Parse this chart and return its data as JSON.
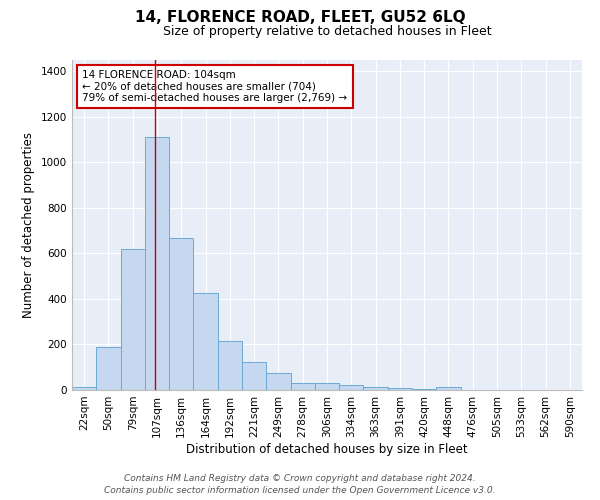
{
  "title": "14, FLORENCE ROAD, FLEET, GU52 6LQ",
  "subtitle": "Size of property relative to detached houses in Fleet",
  "xlabel": "Distribution of detached houses by size in Fleet",
  "ylabel": "Number of detached properties",
  "footer_line1": "Contains HM Land Registry data © Crown copyright and database right 2024.",
  "footer_line2": "Contains public sector information licensed under the Open Government Licence v3.0.",
  "categories": [
    "22sqm",
    "50sqm",
    "79sqm",
    "107sqm",
    "136sqm",
    "164sqm",
    "192sqm",
    "221sqm",
    "249sqm",
    "278sqm",
    "306sqm",
    "334sqm",
    "363sqm",
    "391sqm",
    "420sqm",
    "448sqm",
    "476sqm",
    "505sqm",
    "533sqm",
    "562sqm",
    "590sqm"
  ],
  "values": [
    15,
    190,
    620,
    1110,
    670,
    425,
    215,
    125,
    75,
    32,
    32,
    20,
    13,
    10,
    3,
    12,
    0,
    0,
    0,
    0,
    0
  ],
  "bar_color": "#c5d8f0",
  "bar_edge_color": "#6aaad4",
  "vline_x": 2.93,
  "vline_color": "#cc0000",
  "annotation_text": "14 FLORENCE ROAD: 104sqm\n← 20% of detached houses are smaller (704)\n79% of semi-detached houses are larger (2,769) →",
  "annotation_box_color": "#ffffff",
  "annotation_box_edge": "#cc0000",
  "ylim": [
    0,
    1450
  ],
  "yticks": [
    0,
    200,
    400,
    600,
    800,
    1000,
    1200,
    1400
  ],
  "bg_color": "#e8eef8",
  "grid_color": "#ffffff",
  "title_fontsize": 11,
  "subtitle_fontsize": 9,
  "axis_label_fontsize": 8.5,
  "tick_fontsize": 7.5,
  "footer_fontsize": 6.5
}
